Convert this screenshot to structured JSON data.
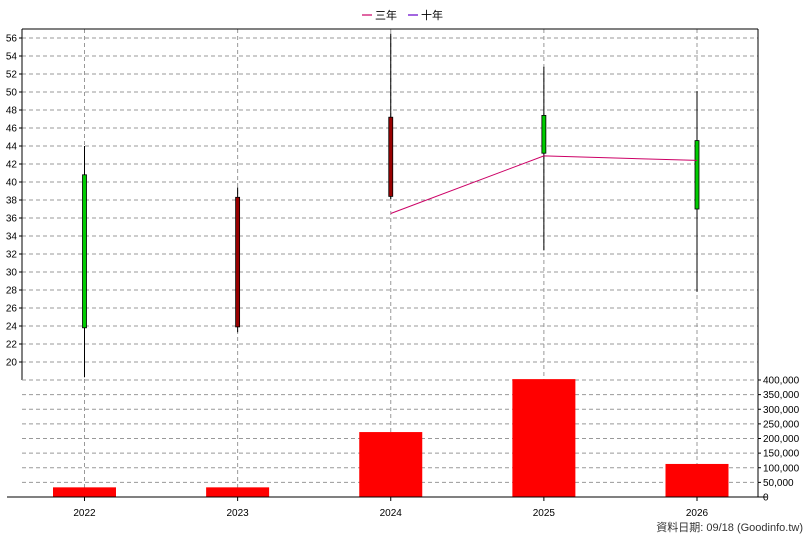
{
  "legend": [
    {
      "label": "三年",
      "color": "#cc0066"
    },
    {
      "label": "十年",
      "color": "#6600cc"
    }
  ],
  "footer": "資料日期: 09/18  (Goodinfo.tw)",
  "chart_data": {
    "type": "candlestick+bar",
    "categories": [
      "2022",
      "2023",
      "2024",
      "2025",
      "2026"
    ],
    "price_axis": {
      "ylim": [
        18,
        57
      ],
      "ticks": [
        20,
        22,
        24,
        26,
        28,
        30,
        32,
        34,
        36,
        38,
        40,
        42,
        44,
        46,
        48,
        50,
        52,
        54,
        56
      ]
    },
    "candles": [
      {
        "open": 23.8,
        "high": 44.0,
        "low": 18.3,
        "close": 40.8,
        "color": "#00cc00"
      },
      {
        "open": 38.3,
        "high": 39.4,
        "low": 23.3,
        "close": 23.9,
        "color": "#990000"
      },
      {
        "open": 47.2,
        "high": 56.5,
        "low": 38.1,
        "close": 38.4,
        "color": "#990000"
      },
      {
        "open": 43.2,
        "high": 52.8,
        "low": 32.4,
        "close": 47.4,
        "color": "#00cc00"
      },
      {
        "open": 37.0,
        "high": 50.1,
        "low": 27.8,
        "close": 44.6,
        "color": "#00cc00"
      }
    ],
    "series": [
      {
        "name": "三年",
        "color": "#cc0066",
        "values": [
          null,
          null,
          36.5,
          42.9,
          42.4
        ]
      },
      {
        "name": "十年",
        "color": "#6600cc",
        "values": [
          null,
          null,
          null,
          null,
          null
        ]
      }
    ],
    "volume_axis": {
      "ylim": [
        0,
        400000
      ],
      "ticks": [
        0,
        50000,
        100000,
        150000,
        200000,
        250000,
        300000,
        350000,
        400000
      ],
      "tick_labels": [
        "0",
        "50,000",
        "100,000",
        "150,000",
        "200,000",
        "250,000",
        "300,000",
        "350,000",
        "400,000"
      ]
    },
    "volume": [
      33000,
      33000,
      222000,
      403000,
      113000
    ],
    "volume_color": "#ff0000",
    "grid": true
  }
}
